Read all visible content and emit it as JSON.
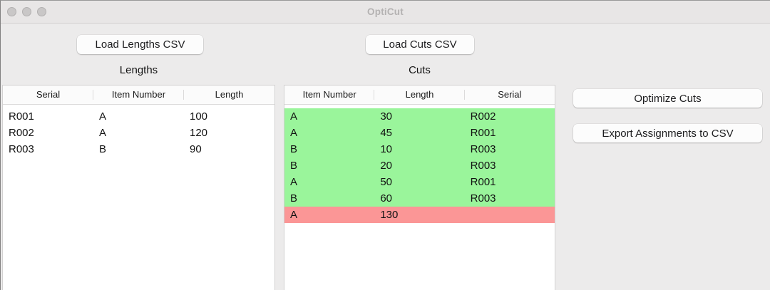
{
  "window": {
    "title": "OptiCut"
  },
  "toolbar": {
    "load_lengths_label": "Load Lengths CSV",
    "load_cuts_label": "Load Cuts CSV"
  },
  "lengths_section": {
    "title": "Lengths",
    "columns": [
      "Serial",
      "Item Number",
      "Length"
    ],
    "rows": [
      {
        "cells": [
          "R001",
          "A",
          "100"
        ]
      },
      {
        "cells": [
          "R002",
          "A",
          "120"
        ]
      },
      {
        "cells": [
          "R003",
          "B",
          "90"
        ]
      }
    ]
  },
  "cuts_section": {
    "title": "Cuts",
    "columns": [
      "Item Number",
      "Length",
      "Serial"
    ],
    "rows": [
      {
        "cells": [
          "A",
          "30",
          "R002"
        ],
        "status": "assigned"
      },
      {
        "cells": [
          "A",
          "45",
          "R001"
        ],
        "status": "assigned"
      },
      {
        "cells": [
          "B",
          "10",
          "R003"
        ],
        "status": "assigned"
      },
      {
        "cells": [
          "B",
          "20",
          "R003"
        ],
        "status": "assigned"
      },
      {
        "cells": [
          "A",
          "50",
          "R001"
        ],
        "status": "assigned"
      },
      {
        "cells": [
          "B",
          "60",
          "R003"
        ],
        "status": "assigned"
      },
      {
        "cells": [
          "A",
          "130",
          ""
        ],
        "status": "unassigned"
      }
    ]
  },
  "actions": {
    "optimize_label": "Optimize Cuts",
    "export_label": "Export Assignments to CSV"
  },
  "colors": {
    "assigned_row": "#9AF59B",
    "unassigned_row": "#FB9696"
  }
}
